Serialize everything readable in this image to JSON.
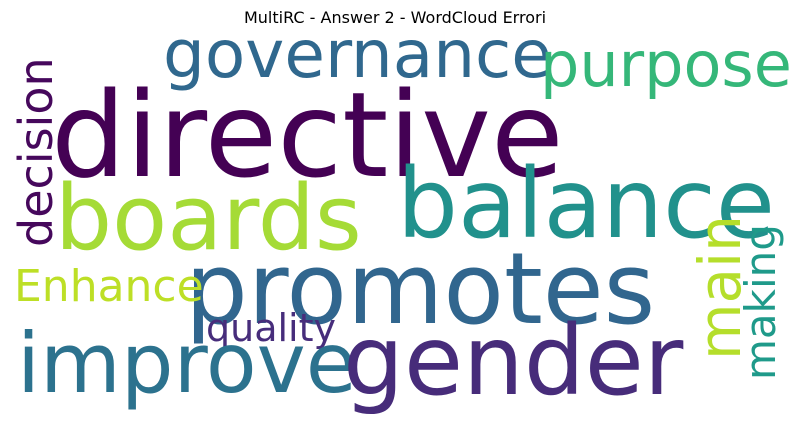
{
  "title": "MultiRC - Answer 2 - WordCloud Errori",
  "words": [
    {
      "text": "directive",
      "color": "#440154"
    },
    {
      "text": "governance",
      "color": "#30688e"
    },
    {
      "text": "purpose",
      "color": "#35b779"
    },
    {
      "text": "decision",
      "color": "#46085c"
    },
    {
      "text": "boards",
      "color": "#a5db36"
    },
    {
      "text": "balance",
      "color": "#21918c"
    },
    {
      "text": "promotes",
      "color": "#31668e"
    },
    {
      "text": "Enhance",
      "color": "#bddf26"
    },
    {
      "text": "quality",
      "color": "#472d7b"
    },
    {
      "text": "improve",
      "color": "#2c728e"
    },
    {
      "text": "gender",
      "color": "#472c7a"
    },
    {
      "text": "main",
      "color": "#b5de2b"
    },
    {
      "text": "making",
      "color": "#1f9a8a"
    }
  ]
}
